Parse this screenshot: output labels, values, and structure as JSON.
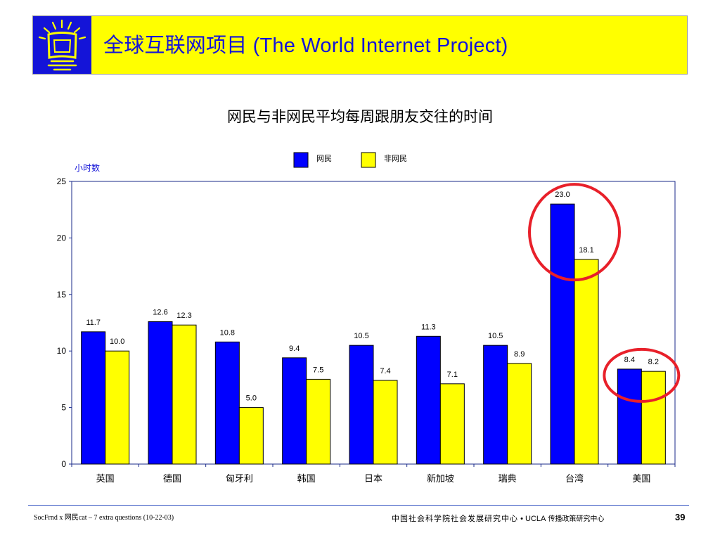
{
  "header": {
    "title": "全球互联网项目 (The World Internet Project)"
  },
  "colors": {
    "banner_bg": "#ffff00",
    "logo_bg": "#1414d8",
    "title_text": "#1414d8",
    "series_internet": "#0000ff",
    "series_non_internet": "#ffff00",
    "highlight_circle": "#e8202a"
  },
  "chart_data": {
    "type": "bar",
    "title": "网民与非网民平均每周跟朋友交往的时间",
    "ylabel": "小时数",
    "xlabel": "",
    "ylim": [
      0,
      25
    ],
    "yticks": [
      0,
      5,
      10,
      15,
      20,
      25
    ],
    "grid": false,
    "legend_position": "top",
    "categories": [
      "英国",
      "德国",
      "匈牙利",
      "韩国",
      "日本",
      "新加坡",
      "瑞典",
      "台湾",
      "美国"
    ],
    "series": [
      {
        "name": "网民",
        "color": "#0000ff",
        "values": [
          11.7,
          12.6,
          10.8,
          9.4,
          10.5,
          11.3,
          10.5,
          23.0,
          8.4
        ]
      },
      {
        "name": "非网民",
        "color": "#ffff00",
        "values": [
          10.0,
          12.3,
          5.0,
          7.5,
          7.4,
          7.1,
          8.9,
          18.1,
          8.2
        ]
      }
    ],
    "highlighted_categories": [
      "台湾",
      "美国"
    ]
  },
  "footer": {
    "left": "SocFrnd x 网民cat – 7 extra questions (10-22-03)",
    "center_org": "中国社会科学院社会发展研究中心",
    "center_sep": "•",
    "center_ucla": "UCLA",
    "center_ucla_cn": "传播政策研究中心",
    "page_number": "39"
  }
}
